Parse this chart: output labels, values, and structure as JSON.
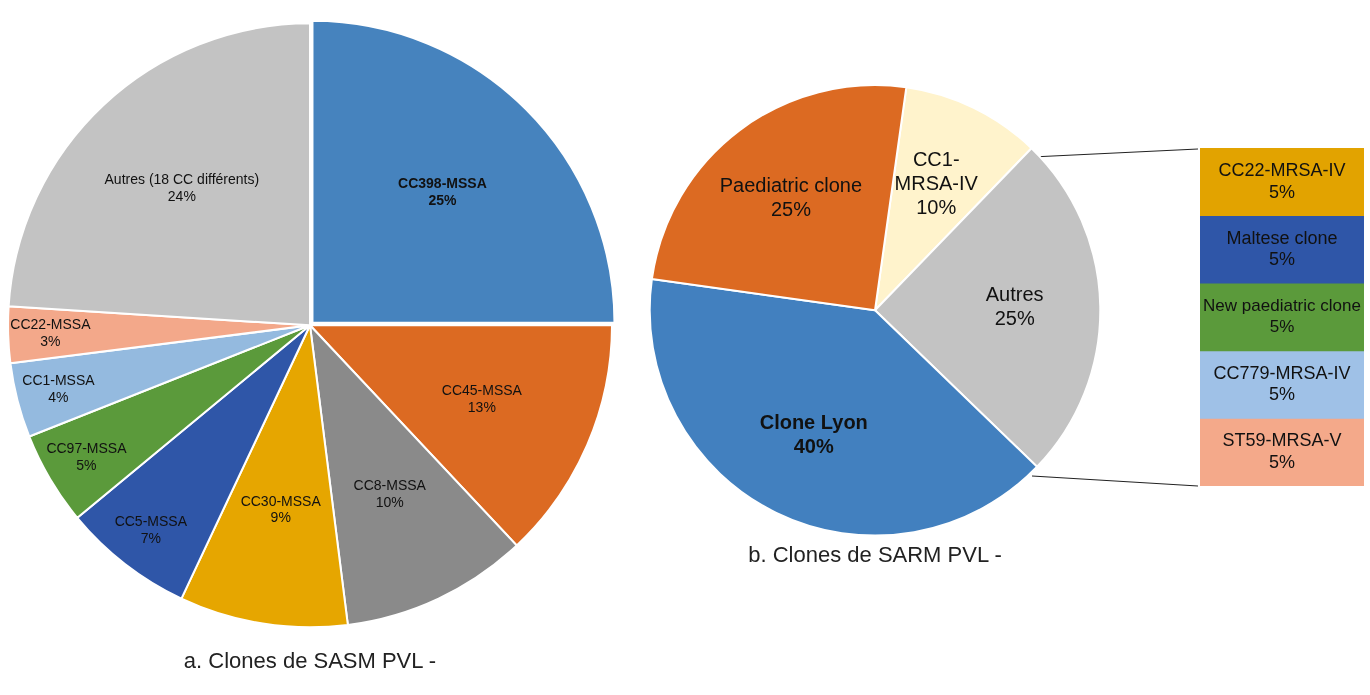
{
  "chart_data": [
    {
      "type": "pie",
      "title": "a. Clones de SASM PVL -",
      "categories": [
        "CC398-MSSA",
        "CC45-MSSA",
        "CC8-MSSA",
        "CC30-MSSA",
        "CC5-MSSA",
        "CC97-MSSA",
        "CC1-MSSA",
        "CC22-MSSA",
        "Autres (18 CC différents)"
      ],
      "values": [
        25,
        13,
        10,
        9,
        7,
        5,
        4,
        3,
        24
      ],
      "colors": [
        "#4683be",
        "#dc6a22",
        "#8a8a8a",
        "#e6a600",
        "#2f56a8",
        "#5b9a3b",
        "#94badf",
        "#f3a88a",
        "#c3c3c3"
      ],
      "value_labels": [
        "25%",
        "13%",
        "10%",
        "9%",
        "7%",
        "5%",
        "4%",
        "3%",
        "24%"
      ]
    },
    {
      "type": "pie",
      "title": "b. Clones de SARM PVL -",
      "categories": [
        "CC1-MRSA-IV",
        "Autres",
        "Clone Lyon",
        "Paediatric clone"
      ],
      "values": [
        10,
        25,
        40,
        25
      ],
      "colors": [
        "#fff3cc",
        "#c3c3c3",
        "#4280bf",
        "#dc6a22"
      ],
      "value_labels": [
        "10%",
        "25%",
        "40%",
        "25%"
      ]
    },
    {
      "type": "other",
      "categories": [
        "CC22-MRSA-IV",
        "Maltese clone",
        "New paediatric clone",
        "CC779-MRSA-IV",
        "ST59-MRSA-V"
      ],
      "values": [
        5,
        5,
        5,
        5,
        5
      ],
      "colors": [
        "#e2a300",
        "#2f56a8",
        "#5b9a3b",
        "#9fc1e7",
        "#f4a98a"
      ],
      "value_labels": [
        "5%",
        "5%",
        "5%",
        "5%",
        "5%"
      ]
    }
  ]
}
